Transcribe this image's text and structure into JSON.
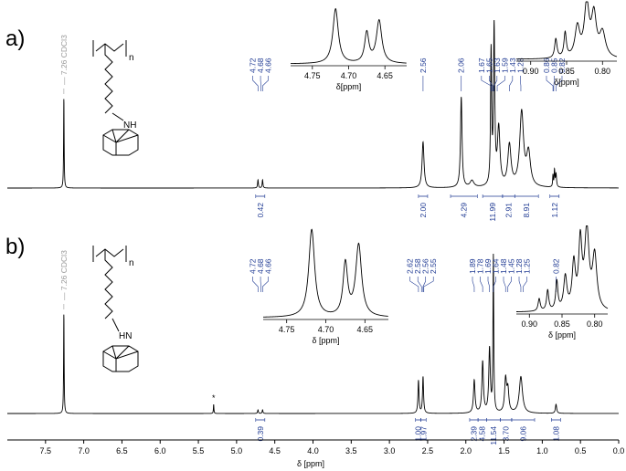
{
  "colors": {
    "spectrum": "#000000",
    "annotation": "#1f3a93",
    "solvent": "#9a9a9a"
  },
  "chart_data": [
    {
      "type": "line",
      "panel": "a)",
      "x_axis": {
        "label": "δ [ppm]",
        "lim": [
          8.0,
          0.0
        ],
        "reversed": true,
        "ticks": [
          7.5,
          7.0,
          6.5,
          6.0,
          5.5,
          5.0,
          4.5,
          4.0,
          3.5,
          3.0,
          2.5,
          2.0,
          1.5,
          1.0,
          0.5,
          0.0
        ]
      },
      "solvent": {
        "ppm": 7.26,
        "label": "7.26 CDCl3",
        "intensity": 0.55
      },
      "peaks": [
        {
          "ppm": 7.26,
          "intensity": 0.55,
          "width": 0.004
        },
        {
          "ppm": 4.72,
          "intensity": 0.05,
          "width": 0.006
        },
        {
          "ppm": 4.66,
          "intensity": 0.05,
          "width": 0.006
        },
        {
          "ppm": 2.56,
          "intensity": 0.28,
          "width": 0.015
        },
        {
          "ppm": 2.06,
          "intensity": 0.55,
          "width": 0.012
        },
        {
          "ppm": 1.92,
          "intensity": 0.04,
          "width": 0.03
        },
        {
          "ppm": 1.67,
          "intensity": 0.8,
          "width": 0.008
        },
        {
          "ppm": 1.63,
          "intensity": 0.95,
          "width": 0.01
        },
        {
          "ppm": 1.57,
          "intensity": 0.35,
          "width": 0.02
        },
        {
          "ppm": 1.43,
          "intensity": 0.25,
          "width": 0.025
        },
        {
          "ppm": 1.27,
          "intensity": 0.45,
          "width": 0.03
        },
        {
          "ppm": 1.18,
          "intensity": 0.2,
          "width": 0.03
        },
        {
          "ppm": 0.86,
          "intensity": 0.07,
          "width": 0.005
        },
        {
          "ppm": 0.84,
          "intensity": 0.1,
          "width": 0.006
        },
        {
          "ppm": 0.82,
          "intensity": 0.08,
          "width": 0.008
        }
      ],
      "peak_labels": [
        {
          "group": [
            "4.72",
            "4.68",
            "4.66"
          ],
          "ppm": [
            4.72,
            4.68,
            4.66
          ]
        },
        {
          "group": [
            "2.56"
          ],
          "ppm": [
            2.56
          ]
        },
        {
          "group": [
            "2.06"
          ],
          "ppm": [
            2.06
          ]
        },
        {
          "group": [
            "1.67",
            "1.65",
            "1.63",
            "1.59",
            "1.43",
            "1.28"
          ],
          "ppm": [
            1.67,
            1.65,
            1.63,
            1.59,
            1.43,
            1.28
          ]
        },
        {
          "group": [
            "0.86",
            "0.85",
            "0.82"
          ],
          "ppm": [
            0.86,
            0.85,
            0.82
          ]
        }
      ],
      "integrals": [
        {
          "value": "0.42",
          "from": 4.75,
          "to": 4.63
        },
        {
          "value": "2.00",
          "from": 2.62,
          "to": 2.5
        },
        {
          "value": "4.29",
          "from": 2.2,
          "to": 1.85
        },
        {
          "value": "11.99",
          "from": 1.78,
          "to": 1.52
        },
        {
          "value": "2.91",
          "from": 1.52,
          "to": 1.36
        },
        {
          "value": "8.91",
          "from": 1.36,
          "to": 1.05
        },
        {
          "value": "1.12",
          "from": 0.9,
          "to": 0.78
        }
      ],
      "insets": [
        {
          "ticks": [
            4.75,
            4.7,
            4.65
          ],
          "tick_labels": [
            "4.75",
            "4.70",
            "4.65"
          ],
          "xlabel": "δ[ppm]",
          "xlim": [
            4.78,
            4.62
          ],
          "peaks": [
            {
              "ppm": 4.718,
              "intensity": 1.0,
              "width": 0.0045
            },
            {
              "ppm": 4.675,
              "intensity": 0.55,
              "width": 0.0035
            },
            {
              "ppm": 4.658,
              "intensity": 0.78,
              "width": 0.0045
            }
          ]
        },
        {
          "ticks": [
            0.9,
            0.85,
            0.8
          ],
          "tick_labels": [
            "0.90",
            "0.85",
            "0.80"
          ],
          "xlabel": "δ[ppm]",
          "xlim": [
            0.92,
            0.78
          ],
          "peaks": [
            {
              "ppm": 0.865,
              "intensity": 0.35,
              "width": 0.002
            },
            {
              "ppm": 0.852,
              "intensity": 0.45,
              "width": 0.002
            },
            {
              "ppm": 0.835,
              "intensity": 0.55,
              "width": 0.004
            },
            {
              "ppm": 0.822,
              "intensity": 0.95,
              "width": 0.004
            },
            {
              "ppm": 0.812,
              "intensity": 0.75,
              "width": 0.004
            },
            {
              "ppm": 0.8,
              "intensity": 0.45,
              "width": 0.005
            }
          ]
        }
      ],
      "molecule": {
        "label_n": "n",
        "label_amine": "NH",
        "substituent": "1-adamantyl"
      }
    },
    {
      "type": "line",
      "panel": "b)",
      "x_axis": {
        "label": "δ [ppm]",
        "lim": [
          8.0,
          0.0
        ],
        "reversed": true,
        "ticks": [
          7.5,
          7.0,
          6.5,
          6.0,
          5.5,
          5.0,
          4.5,
          4.0,
          3.5,
          3.0,
          2.5,
          2.0,
          1.5,
          1.0,
          0.5,
          0.0
        ],
        "tick_labels": [
          "7.5",
          "7.0",
          "6.5",
          "6.0",
          "5.5",
          "5.0",
          "4.5",
          "4.0",
          "3.5",
          "3.0",
          "2.5",
          "2.0",
          "1.5",
          "1.0",
          "0.5",
          "0.0"
        ]
      },
      "solvent": {
        "ppm": 7.26,
        "label": "7.26 CDCl3",
        "intensity": 0.55
      },
      "marker": {
        "ppm": 5.3,
        "label": "*"
      },
      "peaks": [
        {
          "ppm": 7.26,
          "intensity": 0.55,
          "width": 0.004
        },
        {
          "ppm": 5.3,
          "intensity": 0.05,
          "width": 0.004
        },
        {
          "ppm": 4.72,
          "intensity": 0.02,
          "width": 0.006
        },
        {
          "ppm": 4.66,
          "intensity": 0.02,
          "width": 0.006
        },
        {
          "ppm": 2.62,
          "intensity": 0.18,
          "width": 0.008
        },
        {
          "ppm": 2.56,
          "intensity": 0.2,
          "width": 0.008
        },
        {
          "ppm": 1.89,
          "intensity": 0.18,
          "width": 0.012
        },
        {
          "ppm": 1.78,
          "intensity": 0.28,
          "width": 0.012
        },
        {
          "ppm": 1.69,
          "intensity": 0.35,
          "width": 0.012
        },
        {
          "ppm": 1.64,
          "intensity": 0.85,
          "width": 0.006
        },
        {
          "ppm": 1.48,
          "intensity": 0.18,
          "width": 0.015
        },
        {
          "ppm": 1.45,
          "intensity": 0.12,
          "width": 0.015
        },
        {
          "ppm": 1.28,
          "intensity": 0.2,
          "width": 0.025
        },
        {
          "ppm": 0.82,
          "intensity": 0.05,
          "width": 0.01
        }
      ],
      "peak_labels": [
        {
          "group": [
            "4.72",
            "4.68",
            "4.66"
          ],
          "ppm": [
            4.72,
            4.68,
            4.66
          ]
        },
        {
          "group": [
            "2.62",
            "2.58",
            "2.56",
            "2.55"
          ],
          "ppm": [
            2.62,
            2.58,
            2.56,
            2.55
          ]
        },
        {
          "group": [
            "1.89",
            "1.78",
            "1.69",
            "1.64",
            "1.48",
            "1.45",
            "1.28",
            "1.25"
          ],
          "ppm": [
            1.89,
            1.78,
            1.69,
            1.64,
            1.48,
            1.45,
            1.28,
            1.25
          ]
        },
        {
          "group": [
            "0.82"
          ],
          "ppm": [
            0.82
          ]
        }
      ],
      "integrals": [
        {
          "value": "0.39",
          "from": 4.75,
          "to": 4.63
        },
        {
          "value": "1.00",
          "from": 2.66,
          "to": 2.59
        },
        {
          "value": "1.97",
          "from": 2.59,
          "to": 2.52
        },
        {
          "value": "2.39",
          "from": 1.95,
          "to": 1.84
        },
        {
          "value": "4.58",
          "from": 1.84,
          "to": 1.73
        },
        {
          "value": "11.54",
          "from": 1.73,
          "to": 1.55
        },
        {
          "value": "3.70",
          "from": 1.55,
          "to": 1.4
        },
        {
          "value": "9.06",
          "from": 1.4,
          "to": 1.1
        },
        {
          "value": "1.08",
          "from": 0.88,
          "to": 0.76
        }
      ],
      "insets": [
        {
          "ticks": [
            4.75,
            4.7,
            4.65
          ],
          "tick_labels": [
            "4.75",
            "4.70",
            "4.65"
          ],
          "xlabel": "δ [ppm]",
          "xlim": [
            4.78,
            4.62
          ],
          "peaks": [
            {
              "ppm": 4.718,
              "intensity": 1.0,
              "width": 0.0045
            },
            {
              "ppm": 4.675,
              "intensity": 0.6,
              "width": 0.0035
            },
            {
              "ppm": 4.658,
              "intensity": 0.82,
              "width": 0.0045
            }
          ]
        },
        {
          "ticks": [
            0.9,
            0.85,
            0.8
          ],
          "tick_labels": [
            "0.90",
            "0.85",
            "0.80"
          ],
          "xlabel": "δ [ppm]",
          "xlim": [
            0.92,
            0.78
          ],
          "peaks": [
            {
              "ppm": 0.885,
              "intensity": 0.15,
              "width": 0.002
            },
            {
              "ppm": 0.872,
              "intensity": 0.25,
              "width": 0.002
            },
            {
              "ppm": 0.858,
              "intensity": 0.35,
              "width": 0.002
            },
            {
              "ppm": 0.845,
              "intensity": 0.4,
              "width": 0.003
            },
            {
              "ppm": 0.832,
              "intensity": 0.55,
              "width": 0.003
            },
            {
              "ppm": 0.822,
              "intensity": 0.8,
              "width": 0.003
            },
            {
              "ppm": 0.812,
              "intensity": 0.95,
              "width": 0.004
            },
            {
              "ppm": 0.8,
              "intensity": 0.65,
              "width": 0.004
            }
          ]
        }
      ],
      "molecule": {
        "label_n": "n",
        "label_amine": "HN",
        "substituent": "2-adamantyl"
      }
    }
  ]
}
